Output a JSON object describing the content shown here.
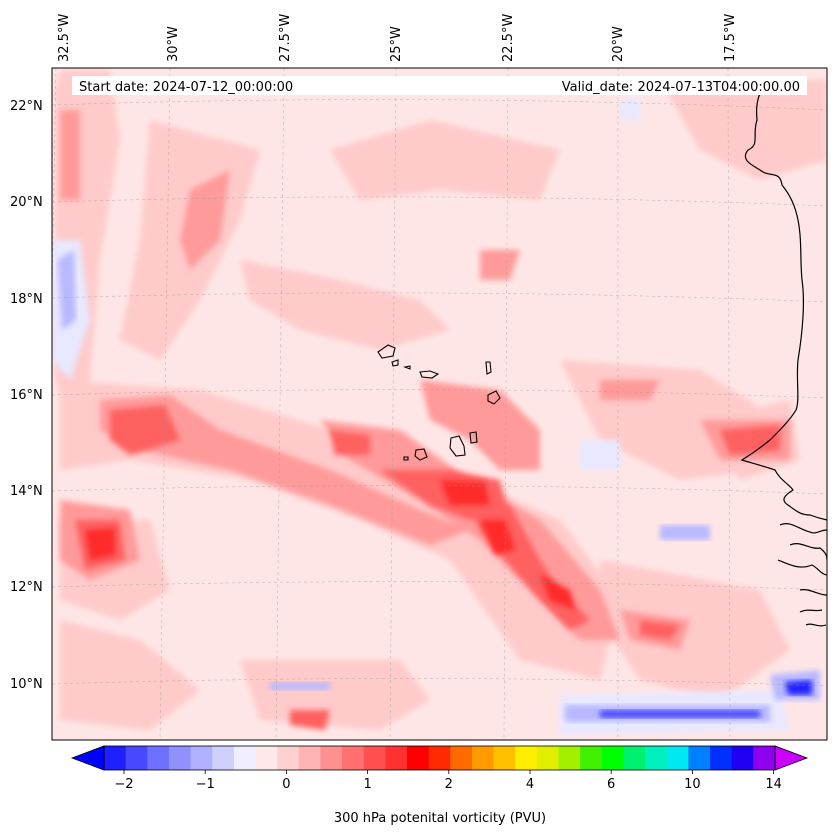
{
  "map": {
    "title_left": "Start date: 2024-07-12_00:00:00",
    "title_right": "Valid_date: 2024-07-13T04:00:00.00",
    "lon_labels": [
      "32.5°W",
      "30°W",
      "27.5°W",
      "25°W",
      "22.5°W",
      "20°W",
      "17.5°W"
    ],
    "lat_labels": [
      "22°N",
      "20°N",
      "18°N",
      "16°N",
      "14°N",
      "12°N",
      "10°N"
    ],
    "gridlines": true,
    "projection": "lambert-conformal",
    "region": "Cabo Verde islands and West African coast"
  },
  "colorbar": {
    "label": "300 hPa potenital vorticity (PVU)",
    "ticks": [
      "−2",
      "−1",
      "0",
      "1",
      "2",
      "4",
      "6",
      "10",
      "14"
    ],
    "extend": "both",
    "levels_colors": [
      "#0000ff",
      "#2020ff",
      "#4848ff",
      "#7070ff",
      "#9090ff",
      "#b0b0ff",
      "#d0d0ff",
      "#eeeeff",
      "#ffe8e8",
      "#ffd0d0",
      "#ffb4b4",
      "#ff9090",
      "#ff7070",
      "#ff5050",
      "#ff3030",
      "#ff0000",
      "#ff2a00",
      "#ff6a00",
      "#ff9a00",
      "#ffc000",
      "#ffee00",
      "#e0f000",
      "#a0f000",
      "#40f000",
      "#00ff00",
      "#00f070",
      "#00f0c0",
      "#00e8f0",
      "#0080ff",
      "#0030ff",
      "#2000f0",
      "#9000f0"
    ],
    "under_color": "#0000ff",
    "over_color": "#cc00ff"
  },
  "field": {
    "background_color": "#ffe6e6",
    "light_color": "#ffcaca",
    "medium_color": "#ff9a9a",
    "strong_color": "#ff6060",
    "max_color": "#ff2a2a",
    "negative_light": "#e8e8ff",
    "negative_medium": "#b8b8ff",
    "negative_strong": "#4a4aff"
  }
}
